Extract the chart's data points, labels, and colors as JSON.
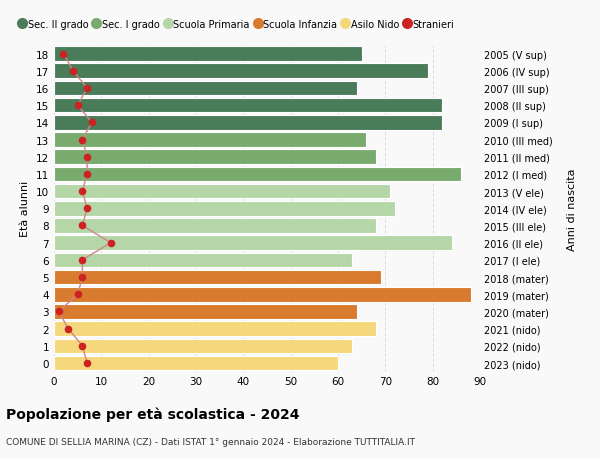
{
  "ages": [
    18,
    17,
    16,
    15,
    14,
    13,
    12,
    11,
    10,
    9,
    8,
    7,
    6,
    5,
    4,
    3,
    2,
    1,
    0
  ],
  "anni_nascita": [
    "2005 (V sup)",
    "2006 (IV sup)",
    "2007 (III sup)",
    "2008 (II sup)",
    "2009 (I sup)",
    "2010 (III med)",
    "2011 (II med)",
    "2012 (I med)",
    "2013 (V ele)",
    "2014 (IV ele)",
    "2015 (III ele)",
    "2016 (II ele)",
    "2017 (I ele)",
    "2018 (mater)",
    "2019 (mater)",
    "2020 (mater)",
    "2021 (nido)",
    "2022 (nido)",
    "2023 (nido)"
  ],
  "bar_values": [
    65,
    79,
    64,
    82,
    82,
    66,
    68,
    86,
    71,
    72,
    68,
    84,
    63,
    69,
    88,
    64,
    68,
    63,
    60
  ],
  "stranieri_values": [
    2,
    4,
    7,
    5,
    8,
    6,
    7,
    7,
    6,
    7,
    6,
    12,
    6,
    6,
    5,
    1,
    3,
    6,
    7
  ],
  "bar_colors": [
    "#4a7c59",
    "#4a7c59",
    "#4a7c59",
    "#4a7c59",
    "#4a7c59",
    "#7aab6e",
    "#7aab6e",
    "#7aab6e",
    "#b5d6a7",
    "#b5d6a7",
    "#b5d6a7",
    "#b5d6a7",
    "#b5d6a7",
    "#d97b2e",
    "#d97b2e",
    "#d97b2e",
    "#f5d87c",
    "#f5d87c",
    "#f5d87c"
  ],
  "legend_labels": [
    "Sec. II grado",
    "Sec. I grado",
    "Scuola Primaria",
    "Scuola Infanzia",
    "Asilo Nido",
    "Stranieri"
  ],
  "legend_colors": [
    "#4a7c59",
    "#7aab6e",
    "#b5d6a7",
    "#d97b2e",
    "#f5d87c",
    "#cc2222"
  ],
  "stranieri_color": "#cc2222",
  "stranieri_line_color": "#cc8888",
  "title": "Popolazione per età scolastica - 2024",
  "subtitle": "COMUNE DI SELLIA MARINA (CZ) - Dati ISTAT 1° gennaio 2024 - Elaborazione TUTTITALIA.IT",
  "ylabel_left": "Età alunni",
  "ylabel_right": "Anni di nascita",
  "bar_height": 0.85,
  "xlim": [
    0,
    90
  ],
  "xticks": [
    0,
    10,
    20,
    30,
    40,
    50,
    60,
    70,
    80,
    90
  ],
  "background_color": "#f9f9f9",
  "grid_color": "#dddddd"
}
